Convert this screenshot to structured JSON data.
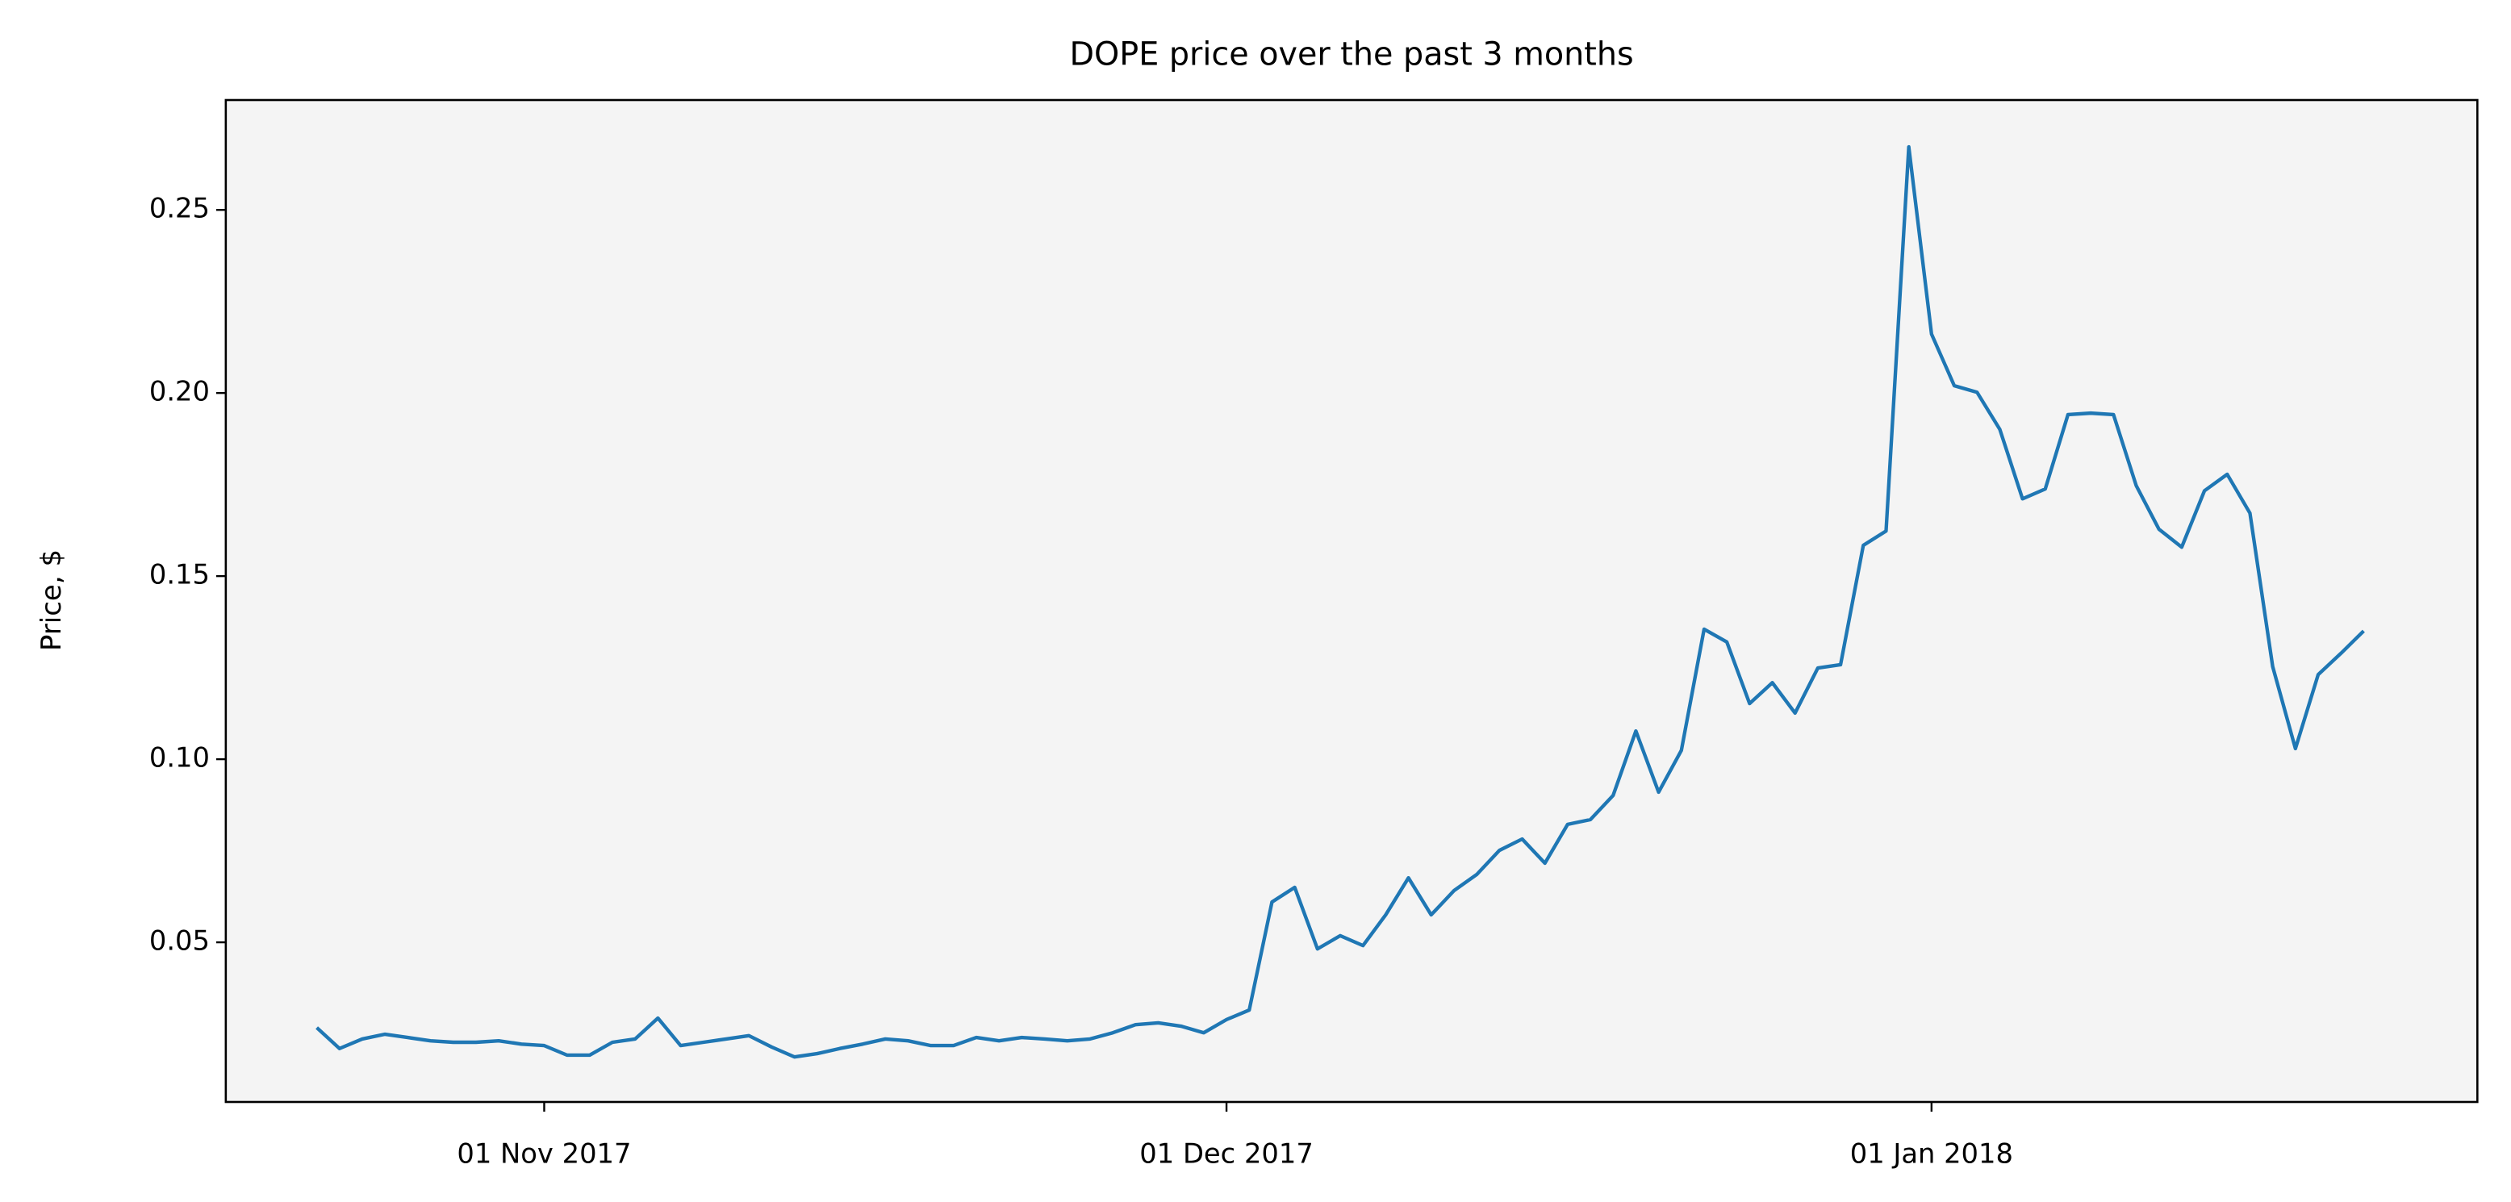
{
  "chart_data": {
    "type": "line",
    "title": "DOPE price over the past 3 months",
    "y_label": "Price, $",
    "x": [
      "2017-10-22",
      "2017-10-23",
      "2017-10-24",
      "2017-10-25",
      "2017-10-26",
      "2017-10-27",
      "2017-10-28",
      "2017-10-29",
      "2017-10-30",
      "2017-10-31",
      "2017-11-01",
      "2017-11-02",
      "2017-11-03",
      "2017-11-04",
      "2017-11-05",
      "2017-11-06",
      "2017-11-07",
      "2017-11-08",
      "2017-11-09",
      "2017-11-10",
      "2017-11-11",
      "2017-11-12",
      "2017-11-13",
      "2017-11-14",
      "2017-11-15",
      "2017-11-16",
      "2017-11-17",
      "2017-11-18",
      "2017-11-19",
      "2017-11-20",
      "2017-11-21",
      "2017-11-22",
      "2017-11-23",
      "2017-11-24",
      "2017-11-25",
      "2017-11-26",
      "2017-11-27",
      "2017-11-28",
      "2017-11-29",
      "2017-11-30",
      "2017-12-01",
      "2017-12-02",
      "2017-12-03",
      "2017-12-04",
      "2017-12-05",
      "2017-12-06",
      "2017-12-07",
      "2017-12-08",
      "2017-12-09",
      "2017-12-10",
      "2017-12-11",
      "2017-12-12",
      "2017-12-13",
      "2017-12-14",
      "2017-12-15",
      "2017-12-16",
      "2017-12-17",
      "2017-12-18",
      "2017-12-19",
      "2017-12-20",
      "2017-12-21",
      "2017-12-22",
      "2017-12-23",
      "2017-12-24",
      "2017-12-25",
      "2017-12-26",
      "2017-12-27",
      "2017-12-28",
      "2017-12-29",
      "2017-12-30",
      "2017-12-31",
      "2018-01-01",
      "2018-01-02",
      "2018-01-03",
      "2018-01-04",
      "2018-01-05",
      "2018-01-06",
      "2018-01-07",
      "2018-01-08",
      "2018-01-09",
      "2018-01-10",
      "2018-01-11",
      "2018-01-12",
      "2018-01-13",
      "2018-01-14",
      "2018-01-15",
      "2018-01-16",
      "2018-01-17",
      "2018-01-18",
      "2018-01-19",
      "2018-01-20"
    ],
    "values": [
      0.0267,
      0.021,
      0.0236,
      0.0249,
      0.024,
      0.0231,
      0.0227,
      0.0227,
      0.0231,
      0.0222,
      0.0218,
      0.0192,
      0.0192,
      0.0227,
      0.0236,
      0.0293,
      0.0218,
      0.0227,
      0.0236,
      0.0245,
      0.0214,
      0.0187,
      0.0196,
      0.021,
      0.0222,
      0.0236,
      0.0231,
      0.0218,
      0.0218,
      0.024,
      0.0231,
      0.024,
      0.0236,
      0.0231,
      0.0236,
      0.0253,
      0.0275,
      0.028,
      0.0271,
      0.0253,
      0.0289,
      0.0315,
      0.061,
      0.065,
      0.0482,
      0.0518,
      0.0491,
      0.0575,
      0.0676,
      0.0575,
      0.0641,
      0.0685,
      0.0751,
      0.0782,
      0.0716,
      0.0822,
      0.0835,
      0.0901,
      0.1077,
      0.091,
      0.1024,
      0.1355,
      0.132,
      0.1152,
      0.1209,
      0.1126,
      0.1249,
      0.1258,
      0.1584,
      0.1623,
      0.2672,
      0.2161,
      0.202,
      0.2002,
      0.1901,
      0.1711,
      0.1738,
      0.1941,
      0.1945,
      0.1941,
      0.1747,
      0.1628,
      0.1579,
      0.1733,
      0.1778,
      0.1672,
      0.1253,
      0.1029,
      0.1231,
      0.1289,
      0.135
    ],
    "color": "#1f77b4",
    "xlim": [
      "2017-10-18",
      "2018-01-25"
    ],
    "xticks": [
      {
        "value": "2017-11-01",
        "label": "01 Nov 2017"
      },
      {
        "value": "2017-12-01",
        "label": "01 Dec 2017"
      },
      {
        "value": "2018-01-01",
        "label": "01 Jan 2018"
      }
    ],
    "ylim": [
      0.0064,
      0.28
    ],
    "yticks": [
      0.05,
      {
        "value": 0.1,
        "label": "0.10"
      },
      0.15,
      {
        "value": 0.2,
        "label": "0.20"
      },
      0.25
    ]
  }
}
